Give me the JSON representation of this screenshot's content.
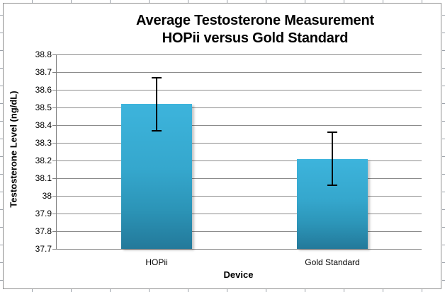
{
  "chart_data": {
    "type": "bar",
    "title_line1": "Average Testosterone Measurement",
    "title_line2": "HOPii versus Gold Standard",
    "xlabel": "Device",
    "ylabel": "Testosterone Level (ng/dL)",
    "categories": [
      "HOPii",
      "Gold Standard"
    ],
    "values": [
      38.52,
      38.21
    ],
    "error_bars_plus_minus": [
      0.15,
      0.15
    ],
    "ylim": [
      37.7,
      38.8
    ],
    "ytick_step": 0.1,
    "ytick_labels": [
      "38.8",
      "38.7",
      "38.6",
      "38.5",
      "38.4",
      "38.3",
      "38.2",
      "38.1",
      "38",
      "37.9",
      "37.8",
      "37.7"
    ],
    "grid": true,
    "legend": "none",
    "colors": {
      "bar_top": "#3db4dc",
      "bar_bottom": "#23799a",
      "gridline": "#8c8c8c",
      "axis": "#808080",
      "error_bar": "#000000",
      "text": "#000000",
      "background": "#ffffff",
      "frame_border": "#8f8f8f"
    }
  }
}
